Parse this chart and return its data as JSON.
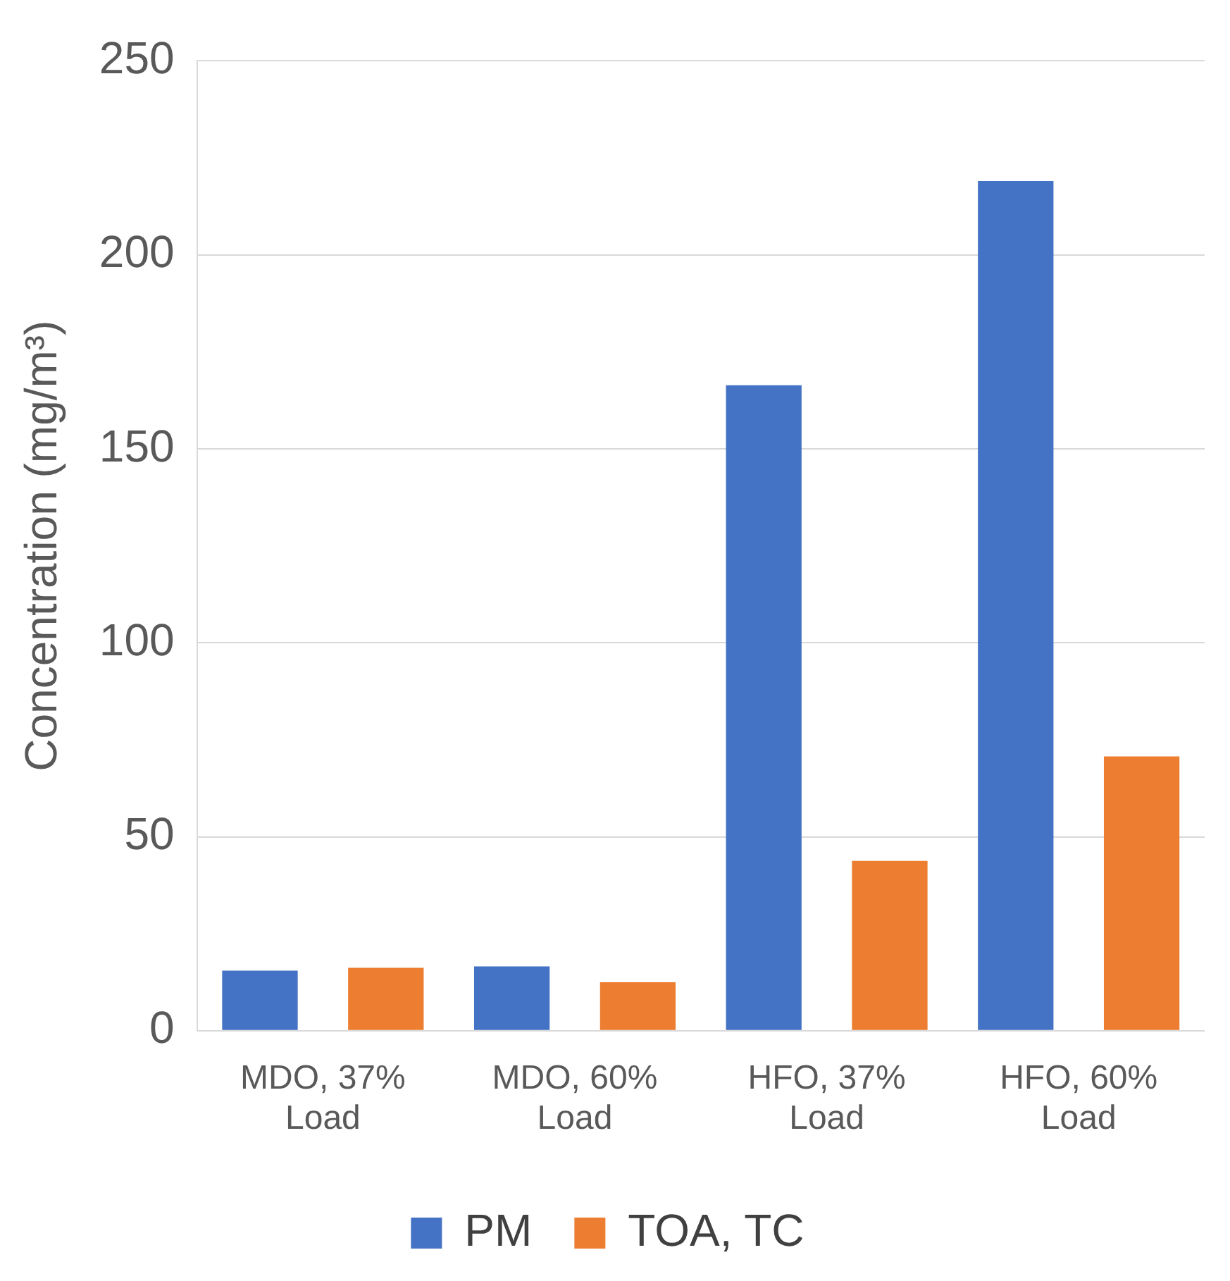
{
  "chart_data": {
    "type": "bar",
    "ylabel": "Concentration (mg/m³)",
    "categories": [
      "MDO, 37% Load",
      "MDO, 60% Load",
      "HFO, 37% Load",
      "HFO, 60% Load"
    ],
    "series": [
      {
        "name": "PM",
        "color": "#4472c4",
        "values": [
          15.5,
          16.6,
          166.4,
          219
        ]
      },
      {
        "name": "TOA, TC",
        "color": "#ed7d31",
        "values": [
          16.2,
          12.5,
          43.8,
          70.7
        ]
      }
    ],
    "ylim": [
      0,
      250
    ],
    "yticks": [
      0,
      50,
      100,
      150,
      200,
      250
    ],
    "grid": "y",
    "legend": "bottom"
  }
}
